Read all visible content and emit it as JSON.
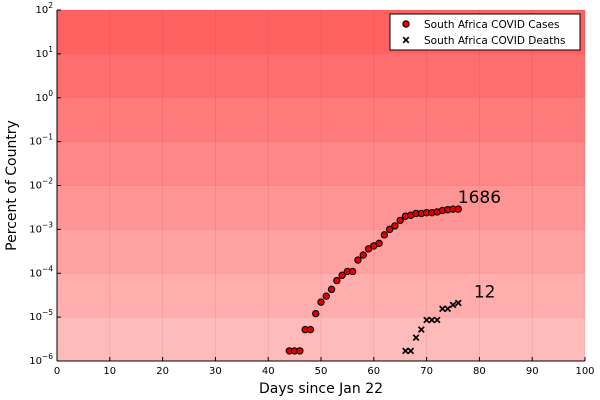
{
  "chart_data": {
    "type": "scatter",
    "title": "",
    "xlabel": "Days since Jan 22",
    "ylabel": "Percent of Country",
    "xlim": [
      0,
      100
    ],
    "ylim_log10": [
      -6,
      2
    ],
    "yscale": "log",
    "grid": true,
    "legend_position": "top-right",
    "background_bands": "red, fading lighter per decade toward bottom",
    "xticks": [
      "0",
      "10",
      "20",
      "30",
      "40",
      "50",
      "60",
      "70",
      "80",
      "90",
      "100"
    ],
    "yticks": [
      {
        "base": "10",
        "exp": "−6"
      },
      {
        "base": "10",
        "exp": "−5"
      },
      {
        "base": "10",
        "exp": "−4"
      },
      {
        "base": "10",
        "exp": "−3"
      },
      {
        "base": "10",
        "exp": "−2"
      },
      {
        "base": "10",
        "exp": "−1"
      },
      {
        "base": "10",
        "exp": "0"
      },
      {
        "base": "10",
        "exp": "1"
      },
      {
        "base": "10",
        "exp": "2"
      }
    ],
    "series": [
      {
        "name": "South Africa COVID Cases",
        "marker": "circle",
        "color": "#e00000",
        "x": [
          44,
          45,
          46,
          47,
          48,
          49,
          50,
          51,
          52,
          53,
          54,
          55,
          56,
          57,
          58,
          59,
          60,
          61,
          62,
          63,
          64,
          65,
          66,
          67,
          68,
          69,
          70,
          71,
          72,
          73,
          74,
          75,
          76
        ],
        "y": [
          1.7e-06,
          1.7e-06,
          1.7e-06,
          5.2e-06,
          5.2e-06,
          1.2e-05,
          2.2e-05,
          3e-05,
          4.3e-05,
          6.8e-05,
          9e-05,
          0.00011,
          0.00011,
          0.0002,
          0.00026,
          0.00036,
          0.00042,
          0.00048,
          0.00075,
          0.001,
          0.0012,
          0.0016,
          0.002,
          0.0021,
          0.0023,
          0.0023,
          0.0024,
          0.0024,
          0.0025,
          0.0027,
          0.0028,
          0.0029,
          0.0029
        ]
      },
      {
        "name": "South Africa COVID Deaths",
        "marker": "x",
        "color": "#000000",
        "x": [
          66,
          67,
          68,
          69,
          70,
          71,
          72,
          73,
          74,
          75,
          76
        ],
        "y": [
          1.7e-06,
          1.7e-06,
          3.4e-06,
          5.2e-06,
          8.6e-06,
          8.6e-06,
          8.6e-06,
          1.55e-05,
          1.55e-05,
          1.9e-05,
          2.1e-05
        ]
      }
    ],
    "annotations": [
      {
        "text": "1686",
        "x": 80,
        "y": 0.0055
      },
      {
        "text": "12",
        "x": 81,
        "y": 3.8e-05
      }
    ]
  }
}
